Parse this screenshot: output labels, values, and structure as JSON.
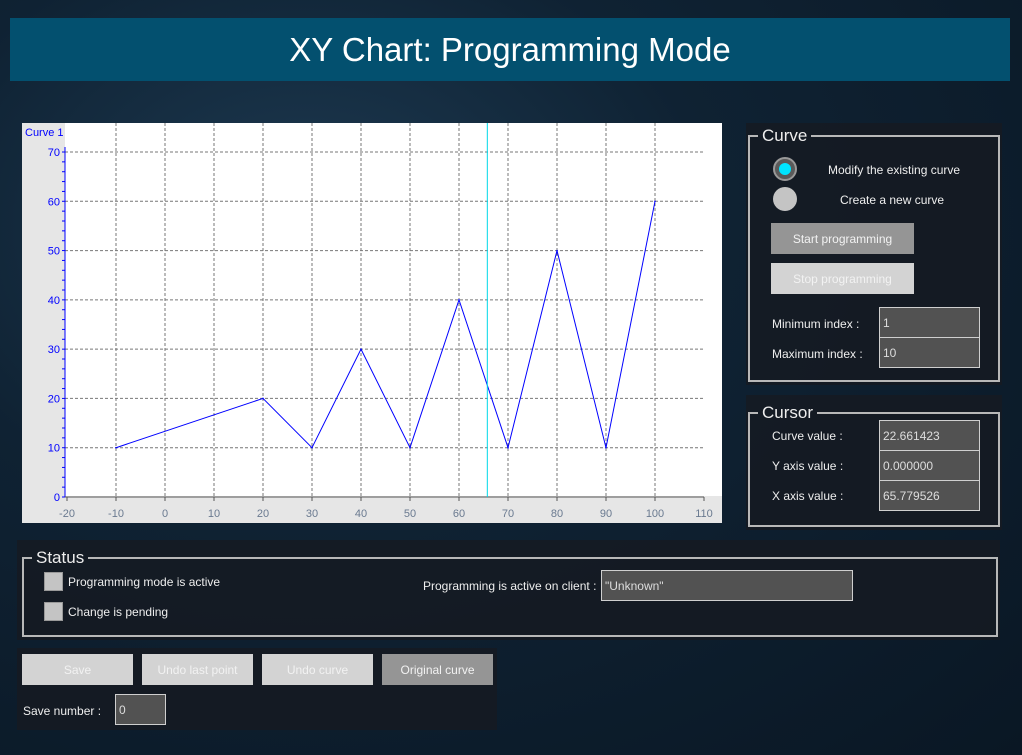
{
  "title": "XY Chart: Programming Mode",
  "chart_data": {
    "type": "line",
    "series": [
      {
        "name": "Curve 1",
        "color": "#0000ff",
        "x": [
          -10,
          20,
          30,
          40,
          50,
          60,
          70,
          80,
          90,
          100
        ],
        "y": [
          10,
          20,
          10,
          30,
          10,
          40,
          10,
          50,
          10,
          60
        ]
      }
    ],
    "xlim": [
      -20,
      110
    ],
    "ylim": [
      0,
      70
    ],
    "xticks": [
      -20,
      -10,
      0,
      10,
      20,
      30,
      40,
      50,
      60,
      70,
      80,
      90,
      100,
      110
    ],
    "yticks": [
      0,
      10,
      20,
      30,
      40,
      50,
      60,
      70
    ],
    "grid": true,
    "cursor_x": 65.779526,
    "cursor_color": "#00d8e8"
  },
  "curve": {
    "title": "Curve",
    "radio_modify": "Modify the existing curve",
    "radio_new": "Create a new curve",
    "selected": "modify",
    "start": "Start programming",
    "stop": "Stop programming",
    "min_label": "Minimum index :",
    "min_value": "1",
    "max_label": "Maximum index :",
    "max_value": "10"
  },
  "cursor": {
    "title": "Cursor",
    "curve_label": "Curve value :",
    "curve_value": "22.661423",
    "y_label": "Y axis value :",
    "y_value": "0.000000",
    "x_label": "X axis value :",
    "x_value": "65.779526"
  },
  "status": {
    "title": "Status",
    "prog_active": "Programming mode is active",
    "pending": "Change is pending",
    "client_label": "Programming is active on client :",
    "client_value": "\"Unknown\""
  },
  "actions": {
    "save": "Save",
    "undo_point": "Undo last point",
    "undo_curve": "Undo curve",
    "original": "Original curve",
    "save_number_label": "Save number :",
    "save_number": "0"
  }
}
